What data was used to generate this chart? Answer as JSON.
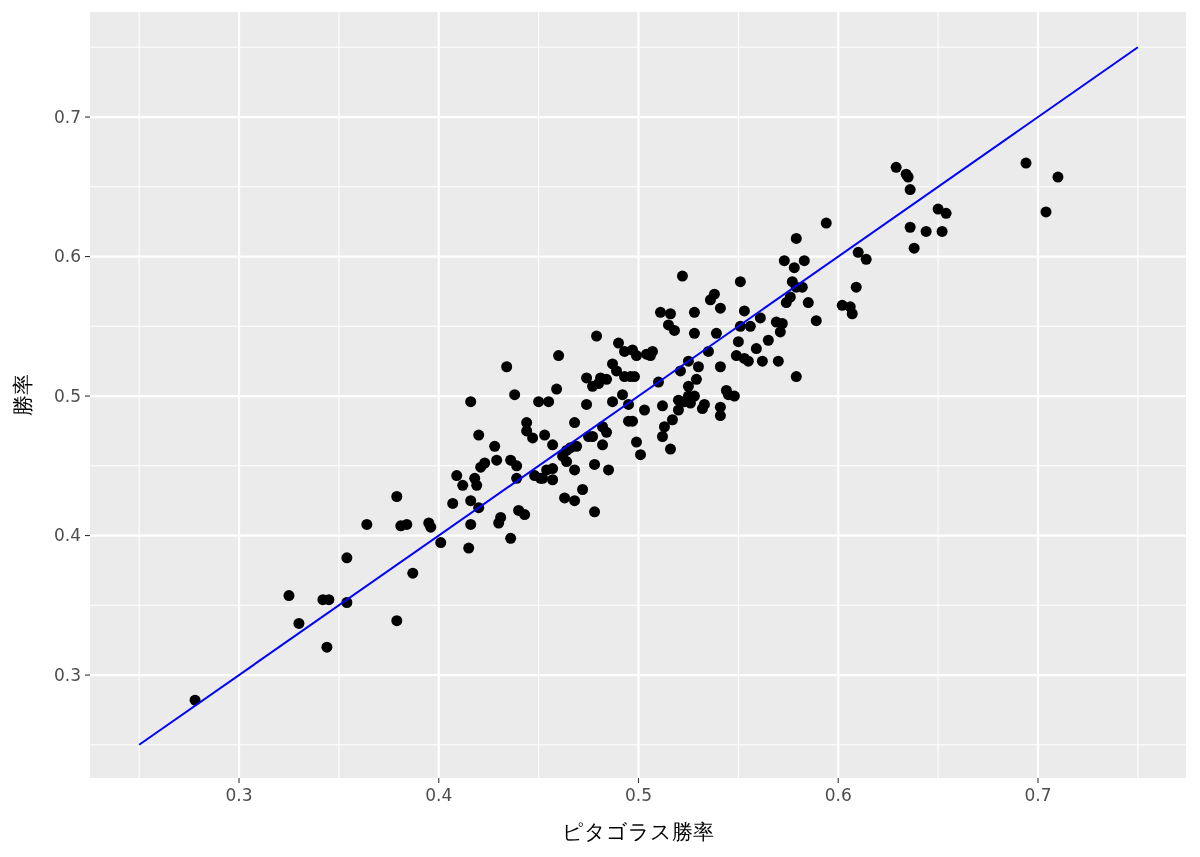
{
  "chart_data": {
    "type": "scatter",
    "xlabel": "ピタゴラス勝率",
    "ylabel": "勝率",
    "grid": true,
    "marker": "circle",
    "xlim": [
      0.2254,
      0.7741
    ],
    "ylim": [
      0.2262,
      0.7753
    ],
    "xticks": [
      {
        "value": 0.25,
        "label": null
      },
      0.3,
      {
        "value": 0.35,
        "label": null
      },
      0.4,
      {
        "value": 0.45,
        "label": null
      },
      0.5,
      {
        "value": 0.55,
        "label": null
      },
      0.6,
      {
        "value": 0.65,
        "label": null
      },
      0.7,
      {
        "value": 0.75,
        "label": null
      }
    ],
    "yticks": [
      {
        "value": 0.25,
        "label": null
      },
      0.3,
      {
        "value": 0.35,
        "label": null
      },
      0.4,
      {
        "value": 0.45,
        "label": null
      },
      0.5,
      {
        "value": 0.55,
        "label": null
      },
      0.6,
      {
        "value": 0.65,
        "label": null
      },
      0.7,
      {
        "value": 0.75,
        "label": null
      }
    ],
    "series": [
      {
        "color": "#000000",
        "x": [
          0.278,
          0.325,
          0.33,
          0.342,
          0.345,
          0.344,
          0.354,
          0.354,
          0.364,
          0.379,
          0.379,
          0.381,
          0.384,
          0.387,
          0.395,
          0.396,
          0.401,
          0.407,
          0.409,
          0.412,
          0.416,
          0.416,
          0.416,
          0.415,
          0.418,
          0.419,
          0.42,
          0.42,
          0.421,
          0.423,
          0.428,
          0.429,
          0.43,
          0.431,
          0.434,
          0.436,
          0.436,
          0.438,
          0.439,
          0.44,
          0.439,
          0.443,
          0.444,
          0.444,
          0.447,
          0.448,
          0.45,
          0.451,
          0.452,
          0.453,
          0.454,
          0.455,
          0.457,
          0.457,
          0.457,
          0.46,
          0.459,
          0.462,
          0.463,
          0.464,
          0.464,
          0.466,
          0.468,
          0.468,
          0.468,
          0.469,
          0.472,
          0.474,
          0.474,
          0.475,
          0.477,
          0.477,
          0.478,
          0.478,
          0.479,
          0.48,
          0.481,
          0.482,
          0.482,
          0.484,
          0.484,
          0.485,
          0.487,
          0.487,
          0.489,
          0.49,
          0.492,
          0.493,
          0.493,
          0.495,
          0.495,
          0.496,
          0.497,
          0.497,
          0.498,
          0.499,
          0.499,
          0.501,
          0.503,
          0.504,
          0.506,
          0.507,
          0.51,
          0.511,
          0.512,
          0.512,
          0.513,
          0.515,
          0.516,
          0.516,
          0.517,
          0.518,
          0.52,
          0.52,
          0.521,
          0.522,
          0.523,
          0.525,
          0.525,
          0.525,
          0.526,
          0.528,
          0.528,
          0.528,
          0.529,
          0.53,
          0.532,
          0.533,
          0.535,
          0.536,
          0.538,
          0.539,
          0.541,
          0.541,
          0.541,
          0.541,
          0.544,
          0.545,
          0.548,
          0.549,
          0.55,
          0.551,
          0.551,
          0.553,
          0.553,
          0.555,
          0.556,
          0.559,
          0.561,
          0.562,
          0.565,
          0.569,
          0.57,
          0.571,
          0.572,
          0.573,
          0.574,
          0.576,
          0.577,
          0.578,
          0.579,
          0.579,
          0.579,
          0.582,
          0.583,
          0.585,
          0.589,
          0.594,
          0.602,
          0.606,
          0.607,
          0.609,
          0.61,
          0.614,
          0.629,
          0.634,
          0.635,
          0.636,
          0.636,
          0.638,
          0.644,
          0.65,
          0.652,
          0.654,
          0.694,
          0.704,
          0.71
        ],
        "values": [
          0.282,
          0.357,
          0.337,
          0.354,
          0.354,
          0.32,
          0.384,
          0.352,
          0.408,
          0.428,
          0.339,
          0.407,
          0.408,
          0.373,
          0.409,
          0.406,
          0.395,
          0.423,
          0.443,
          0.436,
          0.496,
          0.425,
          0.408,
          0.391,
          0.441,
          0.436,
          0.472,
          0.42,
          0.449,
          0.452,
          0.464,
          0.454,
          0.409,
          0.413,
          0.521,
          0.454,
          0.398,
          0.501,
          0.45,
          0.418,
          0.441,
          0.415,
          0.481,
          0.475,
          0.47,
          0.443,
          0.496,
          0.441,
          0.441,
          0.472,
          0.447,
          0.496,
          0.448,
          0.465,
          0.44,
          0.529,
          0.505,
          0.457,
          0.427,
          0.461,
          0.453,
          0.463,
          0.481,
          0.425,
          0.447,
          0.464,
          0.433,
          0.513,
          0.494,
          0.471,
          0.507,
          0.471,
          0.451,
          0.417,
          0.543,
          0.509,
          0.513,
          0.478,
          0.465,
          0.474,
          0.512,
          0.447,
          0.496,
          0.523,
          0.518,
          0.538,
          0.501,
          0.514,
          0.532,
          0.482,
          0.494,
          0.514,
          0.533,
          0.482,
          0.514,
          0.467,
          0.529,
          0.458,
          0.49,
          0.53,
          0.529,
          0.532,
          0.51,
          0.56,
          0.471,
          0.493,
          0.478,
          0.551,
          0.559,
          0.462,
          0.483,
          0.547,
          0.497,
          0.49,
          0.518,
          0.586,
          0.496,
          0.5,
          0.525,
          0.507,
          0.495,
          0.56,
          0.545,
          0.5,
          0.512,
          0.521,
          0.491,
          0.494,
          0.532,
          0.569,
          0.573,
          0.545,
          0.563,
          0.486,
          0.492,
          0.521,
          0.504,
          0.501,
          0.5,
          0.529,
          0.539,
          0.55,
          0.582,
          0.527,
          0.561,
          0.525,
          0.55,
          0.534,
          0.556,
          0.525,
          0.54,
          0.553,
          0.525,
          0.546,
          0.552,
          0.597,
          0.567,
          0.571,
          0.582,
          0.592,
          0.514,
          0.613,
          0.578,
          0.578,
          0.597,
          0.567,
          0.554,
          0.624,
          0.565,
          0.564,
          0.559,
          0.578,
          0.603,
          0.598,
          0.664,
          0.659,
          0.657,
          0.648,
          0.621,
          0.606,
          0.618,
          0.634,
          0.618,
          0.631,
          0.667,
          0.632,
          0.657
        ]
      },
      {
        "type": "line",
        "color": "#0000ff",
        "marker": "none",
        "x": [
          0.25,
          0.75
        ],
        "values": [
          0.25,
          0.75
        ]
      }
    ]
  }
}
